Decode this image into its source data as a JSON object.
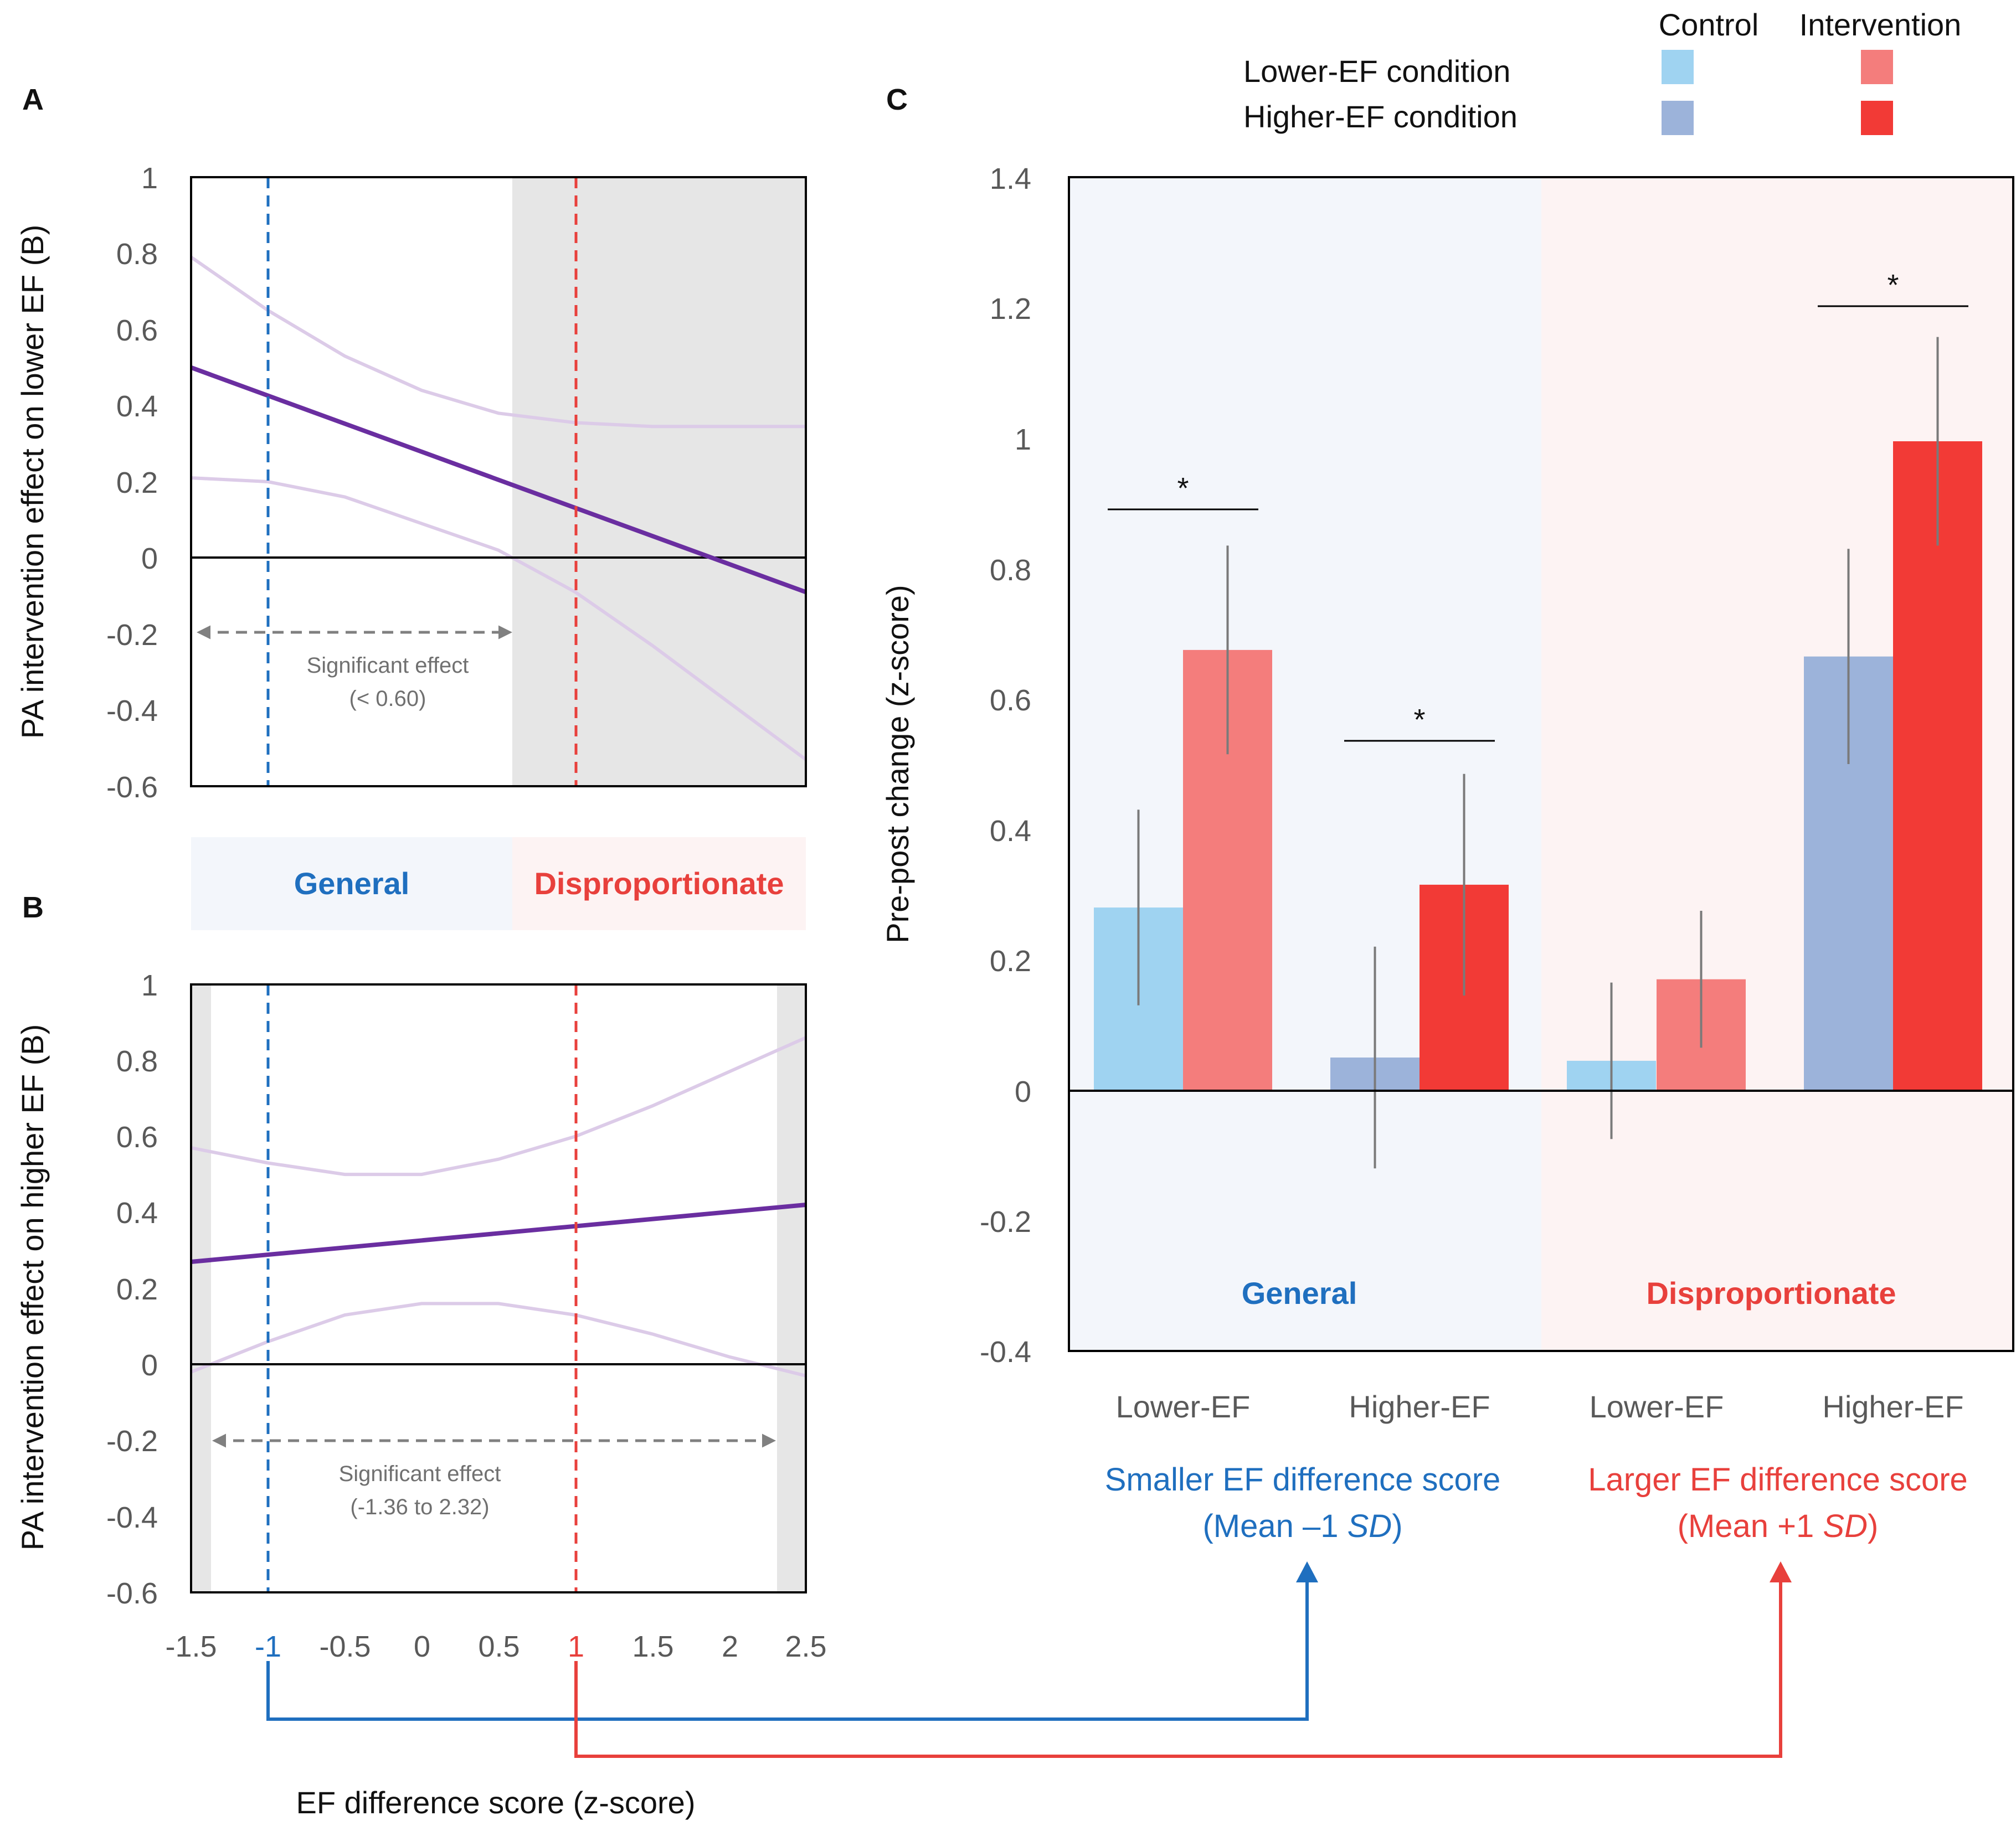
{
  "panels": {
    "a": "A",
    "b": "B",
    "c": "C"
  },
  "colors": {
    "control_lower": "#9fd3f1",
    "control_higher": "#9cb3da",
    "intervention_lower": "#f47d7c",
    "intervention_higher": "#f23a36",
    "general_text": "#1f6fbf",
    "dispro_text": "#e8403c",
    "general_bg": "#f3f6fb",
    "dispro_bg": "#fdf3f3",
    "nonsig_bg": "#e6e6e6",
    "estimate_line": "#6a2ea0",
    "ci_line": "#dccbe8",
    "marker_low": "#1f6fbf",
    "marker_high": "#e8403c",
    "arrow_sig": "#808080",
    "errorbar": "#7a7a7a"
  },
  "legend": {
    "header_control": "Control",
    "header_intervention": "Intervention",
    "rows": [
      "Lower-EF condition",
      "Higher-EF condition"
    ]
  },
  "region_labels": {
    "general": "General",
    "dispro": "Disproportionate"
  },
  "chart_data": [
    {
      "id": "A",
      "type": "line",
      "ylabel": "PA intervention  effect on lower  EF (B)",
      "xlim": [
        -1.5,
        2.5
      ],
      "ylim": [
        -0.6,
        1
      ],
      "yticks": [
        "-0.6",
        "-0.4",
        "-0.2",
        "0",
        "0.2",
        "0.4",
        "0.6",
        "0.8",
        "1"
      ],
      "nonsig_regions": [
        [
          0.6,
          2.5
        ]
      ],
      "markers": [
        -1,
        1
      ],
      "series": [
        {
          "name": "estimate",
          "x": [
            -1.5,
            2.5
          ],
          "y": [
            0.5,
            -0.09
          ]
        },
        {
          "name": "ci_upper",
          "x": [
            -1.5,
            -1.0,
            -0.5,
            0.0,
            0.5,
            1.0,
            1.5,
            2.0,
            2.5
          ],
          "y": [
            0.79,
            0.65,
            0.53,
            0.44,
            0.38,
            0.355,
            0.345,
            0.345,
            0.345
          ]
        },
        {
          "name": "ci_lower",
          "x": [
            -1.5,
            -1.0,
            -0.5,
            0.0,
            0.5,
            1.0,
            1.5,
            2.0,
            2.5
          ],
          "y": [
            0.21,
            0.2,
            0.16,
            0.09,
            0.02,
            -0.09,
            -0.23,
            -0.38,
            -0.53
          ]
        }
      ],
      "annotation": {
        "line1": "Significant effect",
        "line2": "(< 0.60)",
        "from": -1.5,
        "to": 0.6
      }
    },
    {
      "id": "B",
      "type": "line",
      "ylabel": "PA intervention  effect on higher  EF (B)",
      "xlabel": "EF difference  score (z-score)",
      "xlim": [
        -1.5,
        2.5
      ],
      "ylim": [
        -0.6,
        1
      ],
      "xticks": [
        "-1.5",
        "-1",
        "-0.5",
        "0",
        "0.5",
        "1",
        "1.5",
        "2",
        "2.5"
      ],
      "yticks": [
        "-0.6",
        "-0.4",
        "-0.2",
        "0",
        "0.2",
        "0.4",
        "0.6",
        "0.8",
        "1"
      ],
      "nonsig_regions": [
        [
          -1.5,
          -1.36
        ],
        [
          2.32,
          2.5
        ]
      ],
      "markers": [
        -1,
        1
      ],
      "series": [
        {
          "name": "estimate",
          "x": [
            -1.5,
            2.5
          ],
          "y": [
            0.27,
            0.42
          ]
        },
        {
          "name": "ci_upper",
          "x": [
            -1.5,
            -1.0,
            -0.5,
            0.0,
            0.5,
            1.0,
            1.5,
            2.0,
            2.5
          ],
          "y": [
            0.57,
            0.53,
            0.5,
            0.5,
            0.54,
            0.6,
            0.68,
            0.77,
            0.86
          ]
        },
        {
          "name": "ci_lower",
          "x": [
            -1.5,
            -1.0,
            -0.5,
            0.0,
            0.5,
            1.0,
            1.5,
            2.0,
            2.5
          ],
          "y": [
            -0.02,
            0.06,
            0.13,
            0.16,
            0.16,
            0.13,
            0.08,
            0.02,
            -0.03
          ]
        }
      ],
      "annotation": {
        "line1": "Significant effect",
        "line2": "(-1.36 to 2.32)",
        "from": -1.36,
        "to": 2.32
      }
    },
    {
      "id": "C",
      "type": "bar",
      "ylabel": "Pre-post  change (z-score)",
      "ylim": [
        -0.4,
        1.4
      ],
      "yticks": [
        "-0.4",
        "-0.2",
        "0",
        "0.2",
        "0.4",
        "0.6",
        "0.8",
        "1",
        "1.2",
        "1.4"
      ],
      "categories": [
        "Lower-EF",
        "Higher-EF",
        "Lower-EF",
        "Higher-EF"
      ],
      "series": [
        {
          "name": "Control",
          "values": [
            0.28,
            0.05,
            0.045,
            0.665
          ],
          "errors": [
            0.15,
            0.17,
            0.12,
            0.165
          ]
        },
        {
          "name": "Intervention",
          "values": [
            0.675,
            0.315,
            0.17,
            0.995
          ],
          "errors": [
            0.16,
            0.17,
            0.105,
            0.16
          ]
        }
      ],
      "significance": [
        "*",
        "*",
        "",
        "*"
      ],
      "groups": [
        {
          "line1": "Smaller EF difference score",
          "line2_pre": "(Mean –1 ",
          "line2_sd": "SD",
          "line2_post": ")"
        },
        {
          "line1": "Larger EF difference score",
          "line2_pre": "(Mean +1 ",
          "line2_sd": "SD",
          "line2_post": ")"
        }
      ]
    }
  ]
}
